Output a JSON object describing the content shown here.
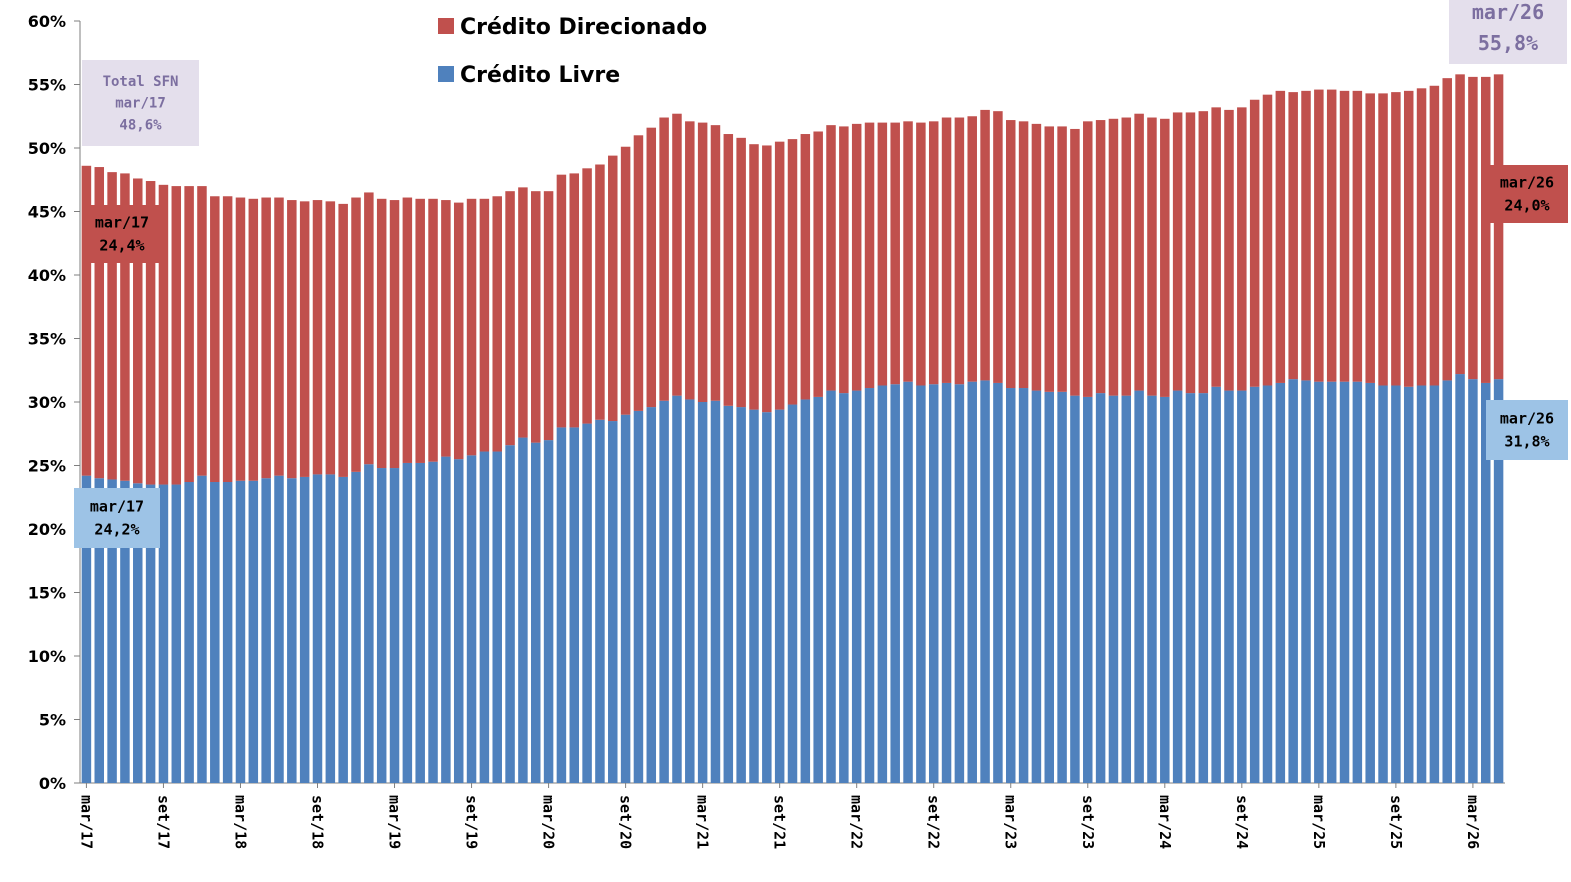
{
  "chart_data": {
    "type": "bar",
    "stacked": true,
    "ylim": [
      0,
      60
    ],
    "yticks": [
      0,
      5,
      10,
      15,
      20,
      25,
      30,
      35,
      40,
      45,
      50,
      55,
      60
    ],
    "ytick_labels": [
      "0%",
      "5%",
      "10%",
      "15%",
      "20%",
      "25%",
      "30%",
      "35%",
      "40%",
      "45%",
      "50%",
      "55%",
      "60%"
    ],
    "xtick_labels": [
      "mar/17",
      "set/17",
      "mar/18",
      "set/18",
      "mar/19",
      "set/19",
      "mar/20",
      "set/20",
      "mar/21",
      "set/21",
      "mar/22",
      "set/22",
      "mar/23",
      "set/23",
      "mar/24",
      "set/24",
      "mar/25",
      "set/25",
      "mar/26"
    ],
    "xtick_every": 6,
    "legend_position": "top",
    "period_start": "mar/17",
    "period_end": "mar/26",
    "series": [
      {
        "name": "Crédito Livre",
        "color": "#4f81bd",
        "values": [
          24.2,
          24.0,
          23.9,
          23.8,
          23.6,
          23.5,
          23.5,
          23.5,
          23.7,
          24.2,
          23.7,
          23.7,
          23.8,
          23.8,
          24.0,
          24.2,
          24.0,
          24.1,
          24.3,
          24.3,
          24.1,
          24.5,
          25.1,
          24.8,
          24.8,
          25.2,
          25.2,
          25.3,
          25.7,
          25.5,
          25.8,
          26.1,
          26.1,
          26.6,
          27.2,
          26.8,
          27.0,
          28.0,
          28.0,
          28.3,
          28.6,
          28.5,
          29.0,
          29.3,
          29.6,
          30.1,
          30.5,
          30.2,
          30.0,
          30.1,
          29.7,
          29.6,
          29.4,
          29.2,
          29.4,
          29.8,
          30.2,
          30.4,
          30.9,
          30.7,
          30.9,
          31.1,
          31.3,
          31.4,
          31.6,
          31.3,
          31.4,
          31.5,
          31.4,
          31.6,
          31.7,
          31.5,
          31.1,
          31.1,
          30.9,
          30.8,
          30.8,
          30.5,
          30.4,
          30.7,
          30.5,
          30.5,
          30.9,
          30.5,
          30.4,
          30.9,
          30.7,
          30.7,
          31.2,
          30.9,
          30.9,
          31.2,
          31.3,
          31.5,
          31.8,
          31.7,
          31.6,
          31.6,
          31.6,
          31.6,
          31.5,
          31.3,
          31.3,
          31.2,
          31.3,
          31.3,
          31.7,
          32.2,
          31.8,
          31.5,
          31.8
        ]
      },
      {
        "name": "Crédito Direcionado",
        "color": "#c0504d",
        "values": [
          24.4,
          24.5,
          24.2,
          24.2,
          24.0,
          23.9,
          23.6,
          23.5,
          23.3,
          22.8,
          22.5,
          22.5,
          22.3,
          22.2,
          22.1,
          21.9,
          21.9,
          21.7,
          21.6,
          21.5,
          21.5,
          21.6,
          21.4,
          21.2,
          21.1,
          20.9,
          20.8,
          20.7,
          20.2,
          20.2,
          20.2,
          19.9,
          20.1,
          20.0,
          19.7,
          19.8,
          19.6,
          19.9,
          20.0,
          20.1,
          20.1,
          20.9,
          21.1,
          21.7,
          22.0,
          22.3,
          22.2,
          21.9,
          22.0,
          21.7,
          21.4,
          21.2,
          20.9,
          21.0,
          21.1,
          20.9,
          20.9,
          20.9,
          20.9,
          21.0,
          21.0,
          20.9,
          20.7,
          20.6,
          20.5,
          20.7,
          20.7,
          20.9,
          21.0,
          20.9,
          21.3,
          21.4,
          21.1,
          21.0,
          21.0,
          20.9,
          20.9,
          21.0,
          21.7,
          21.5,
          21.8,
          21.9,
          21.8,
          21.9,
          21.9,
          21.9,
          22.1,
          22.2,
          22.0,
          22.1,
          22.3,
          22.6,
          22.9,
          23.0,
          22.6,
          22.8,
          23.0,
          23.0,
          22.9,
          22.9,
          22.8,
          23.0,
          23.1,
          23.3,
          23.4,
          23.6,
          23.8,
          23.6,
          23.8,
          24.1,
          24.0
        ]
      }
    ],
    "annotations": [
      {
        "id": "total_start",
        "lines": [
          "Total SFN",
          "mar/17",
          "48,6%"
        ],
        "bg": "#e4dfec",
        "color": "#7c6fa0"
      },
      {
        "id": "total_end",
        "lines": [
          "mar/26",
          "55,8%"
        ],
        "bg": "#e4dfec",
        "color": "#7c6fa0"
      },
      {
        "id": "dir_start",
        "lines": [
          "mar/17",
          "24,4%"
        ],
        "bg": "#c0504d",
        "color": "#000000"
      },
      {
        "id": "dir_end",
        "lines": [
          "mar/26",
          "24,0%"
        ],
        "bg": "#c0504d",
        "color": "#000000"
      },
      {
        "id": "livre_start",
        "lines": [
          "mar/17",
          "24,2%"
        ],
        "bg": "#9dc3e6",
        "color": "#000000"
      },
      {
        "id": "livre_end",
        "lines": [
          "mar/26",
          "31,8%"
        ],
        "bg": "#9dc3e6",
        "color": "#000000"
      }
    ]
  }
}
